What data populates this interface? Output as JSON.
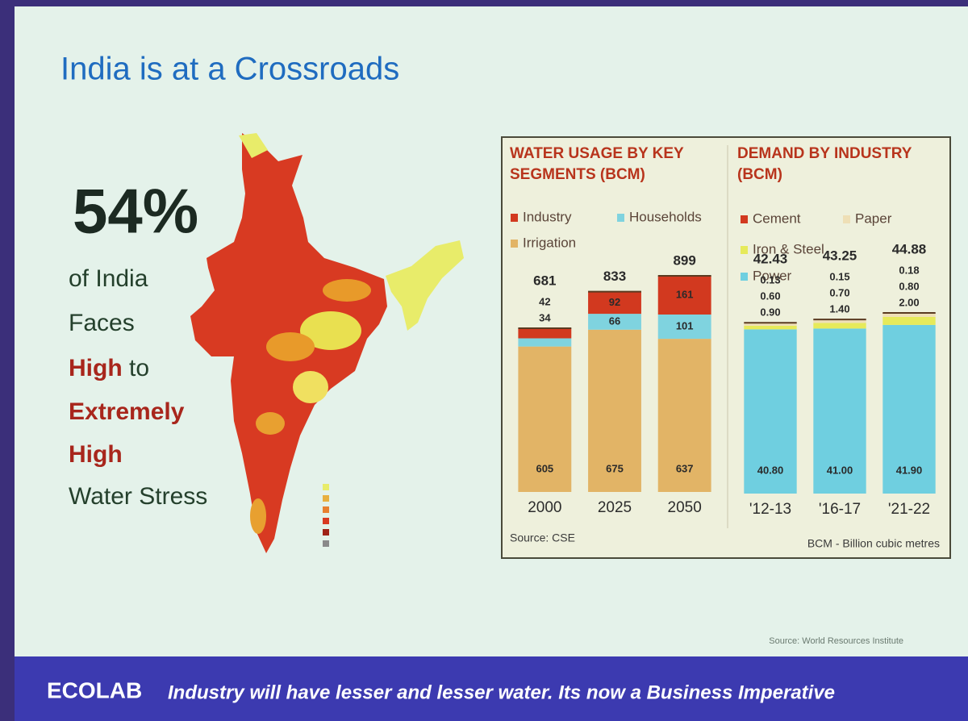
{
  "slide": {
    "title": "India is at a Crossroads",
    "stat": "54%",
    "stat_lines": [
      [
        "of India"
      ],
      [
        "Faces"
      ],
      [
        "High",
        "to"
      ],
      [
        "Extremely"
      ],
      [
        "High"
      ],
      [
        "Water Stress"
      ]
    ],
    "map_source": "Source: World Resources Institute",
    "footer": {
      "logo": "ECOLAB",
      "message": "Industry will have lesser and lesser water. Its now a Business Imperative"
    }
  },
  "chart_data": [
    {
      "type": "bar",
      "stacked": true,
      "title": "WATER USAGE BY KEY SEGMENTS (BCM)",
      "categories": [
        "2000",
        "2025",
        "2050"
      ],
      "series": [
        {
          "name": "Industry",
          "color": "#d2391f",
          "values": [
            42,
            92,
            161
          ]
        },
        {
          "name": "Households",
          "color": "#7fd3df",
          "values": [
            34,
            66,
            101
          ]
        },
        {
          "name": "Irrigation",
          "color": "#e2b466",
          "values": [
            605,
            675,
            637
          ]
        }
      ],
      "totals": [
        681,
        833,
        899
      ],
      "source": "Source: CSE"
    },
    {
      "type": "bar",
      "stacked": true,
      "title": "DEMAND BY INDUSTRY (BCM)",
      "categories": [
        "'12-13",
        "'16-17",
        "'21-22"
      ],
      "series": [
        {
          "name": "Cement",
          "color": "#d2391f",
          "values": [
            0.13,
            0.15,
            0.18
          ],
          "value_labels": [
            "0.13",
            "0.15",
            "0.18"
          ]
        },
        {
          "name": "Paper",
          "color": "#eedfb6",
          "values": [
            0.6,
            0.7,
            0.8
          ],
          "value_labels": [
            "0.60",
            "0.70",
            "0.80"
          ]
        },
        {
          "name": "Iron & Steel",
          "color": "#e6ea5a",
          "values": [
            0.9,
            1.4,
            2.0
          ],
          "value_labels": [
            "0.90",
            "1.40",
            "2.00"
          ]
        },
        {
          "name": "Power",
          "color": "#6fcfe0",
          "values": [
            40.8,
            41.0,
            41.9
          ],
          "value_labels": [
            "40.80",
            "41.00",
            "41.90"
          ]
        }
      ],
      "totals": [
        42.43,
        43.25,
        44.88
      ],
      "note": "BCM - Billion cubic metres"
    }
  ]
}
